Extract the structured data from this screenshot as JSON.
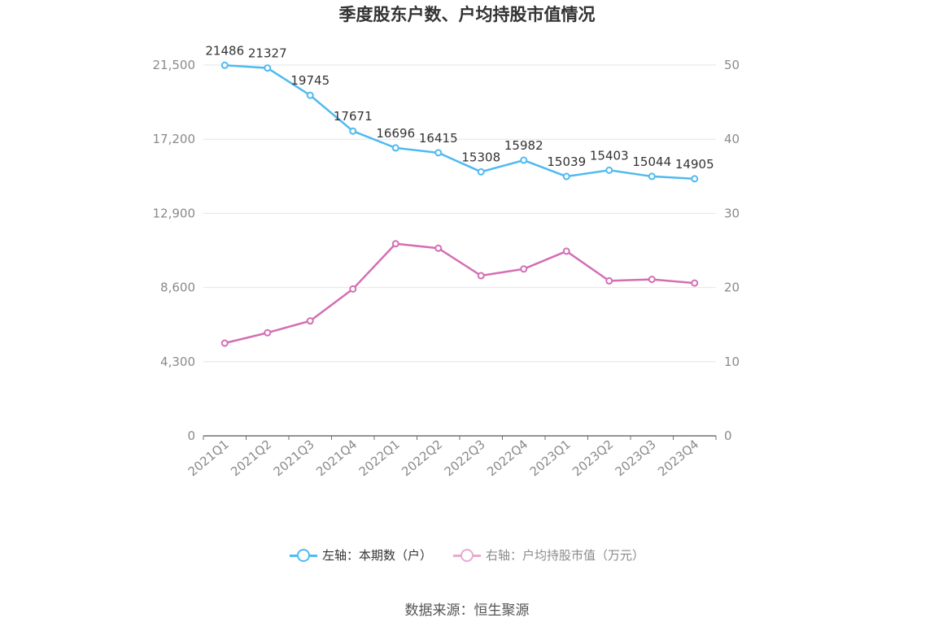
{
  "chart_data": {
    "type": "line",
    "title": "季度股东户数、户均持股市值情况",
    "categories": [
      "2021Q1",
      "2021Q2",
      "2021Q3",
      "2021Q4",
      "2022Q1",
      "2022Q2",
      "2022Q3",
      "2022Q4",
      "2023Q1",
      "2023Q2",
      "2023Q3",
      "2023Q4"
    ],
    "left_axis": {
      "ticks": [
        "0",
        "4,300",
        "8,600",
        "12,900",
        "17,200",
        "21,500"
      ],
      "ylim": [
        0,
        21500
      ]
    },
    "right_axis": {
      "ticks": [
        "0",
        "10",
        "20",
        "30",
        "40",
        "50"
      ],
      "ylim": [
        0,
        50
      ]
    },
    "series": [
      {
        "name": "左轴：本期数（户）",
        "axis": "left",
        "color": "#4fbaf0",
        "values": [
          21486,
          21327,
          19745,
          17671,
          16696,
          16415,
          15308,
          15982,
          15039,
          15403,
          15044,
          14905
        ],
        "labels": [
          "21486",
          "21327",
          "19745",
          "17671",
          "16696",
          "16415",
          "15308",
          "15982",
          "15039",
          "15403",
          "15044",
          "14905"
        ]
      },
      {
        "name": "右轴：户均持股市值（万元）",
        "axis": "right",
        "color": "#d36fb3",
        "values": [
          12.5,
          13.9,
          15.5,
          19.8,
          25.9,
          25.3,
          21.6,
          22.5,
          24.9,
          20.9,
          21.1,
          20.6
        ]
      }
    ],
    "grid": true,
    "legend": "bottom-center"
  },
  "source": "数据来源：恒生聚源"
}
